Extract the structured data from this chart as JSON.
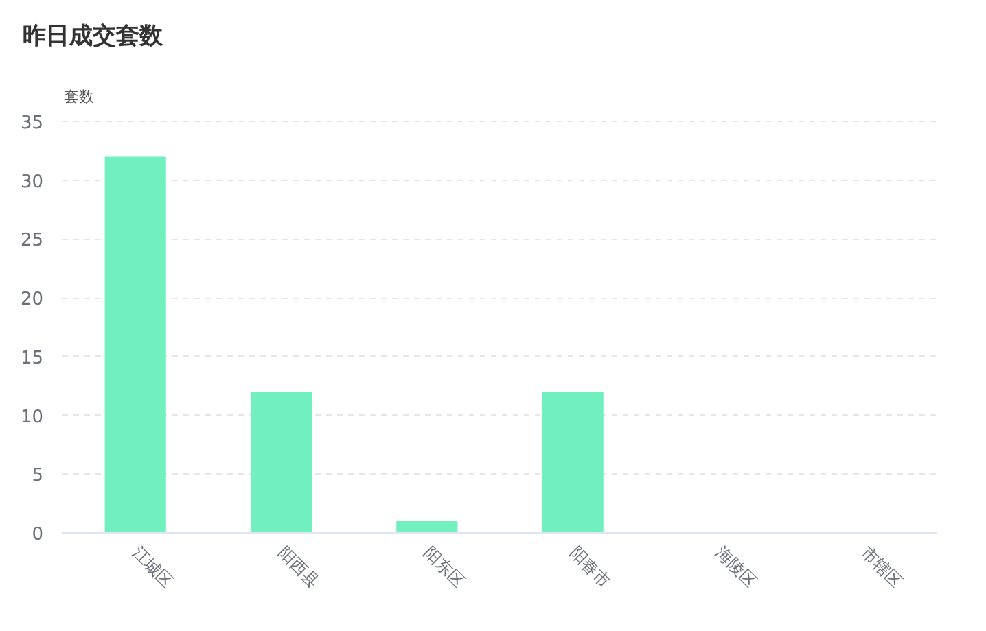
{
  "chart_data": {
    "type": "bar",
    "title": "昨日成交套数",
    "ylabel": "套数",
    "categories": [
      "江城区",
      "阳西县",
      "阳东区",
      "阳春市",
      "海陵区",
      "市辖区"
    ],
    "values": [
      32,
      12,
      1,
      12,
      0,
      0
    ],
    "color": "#72efbf",
    "ylim": [
      0,
      35
    ],
    "yticks": [
      0,
      5,
      10,
      15,
      20,
      25,
      30,
      35
    ],
    "grid": "y"
  }
}
